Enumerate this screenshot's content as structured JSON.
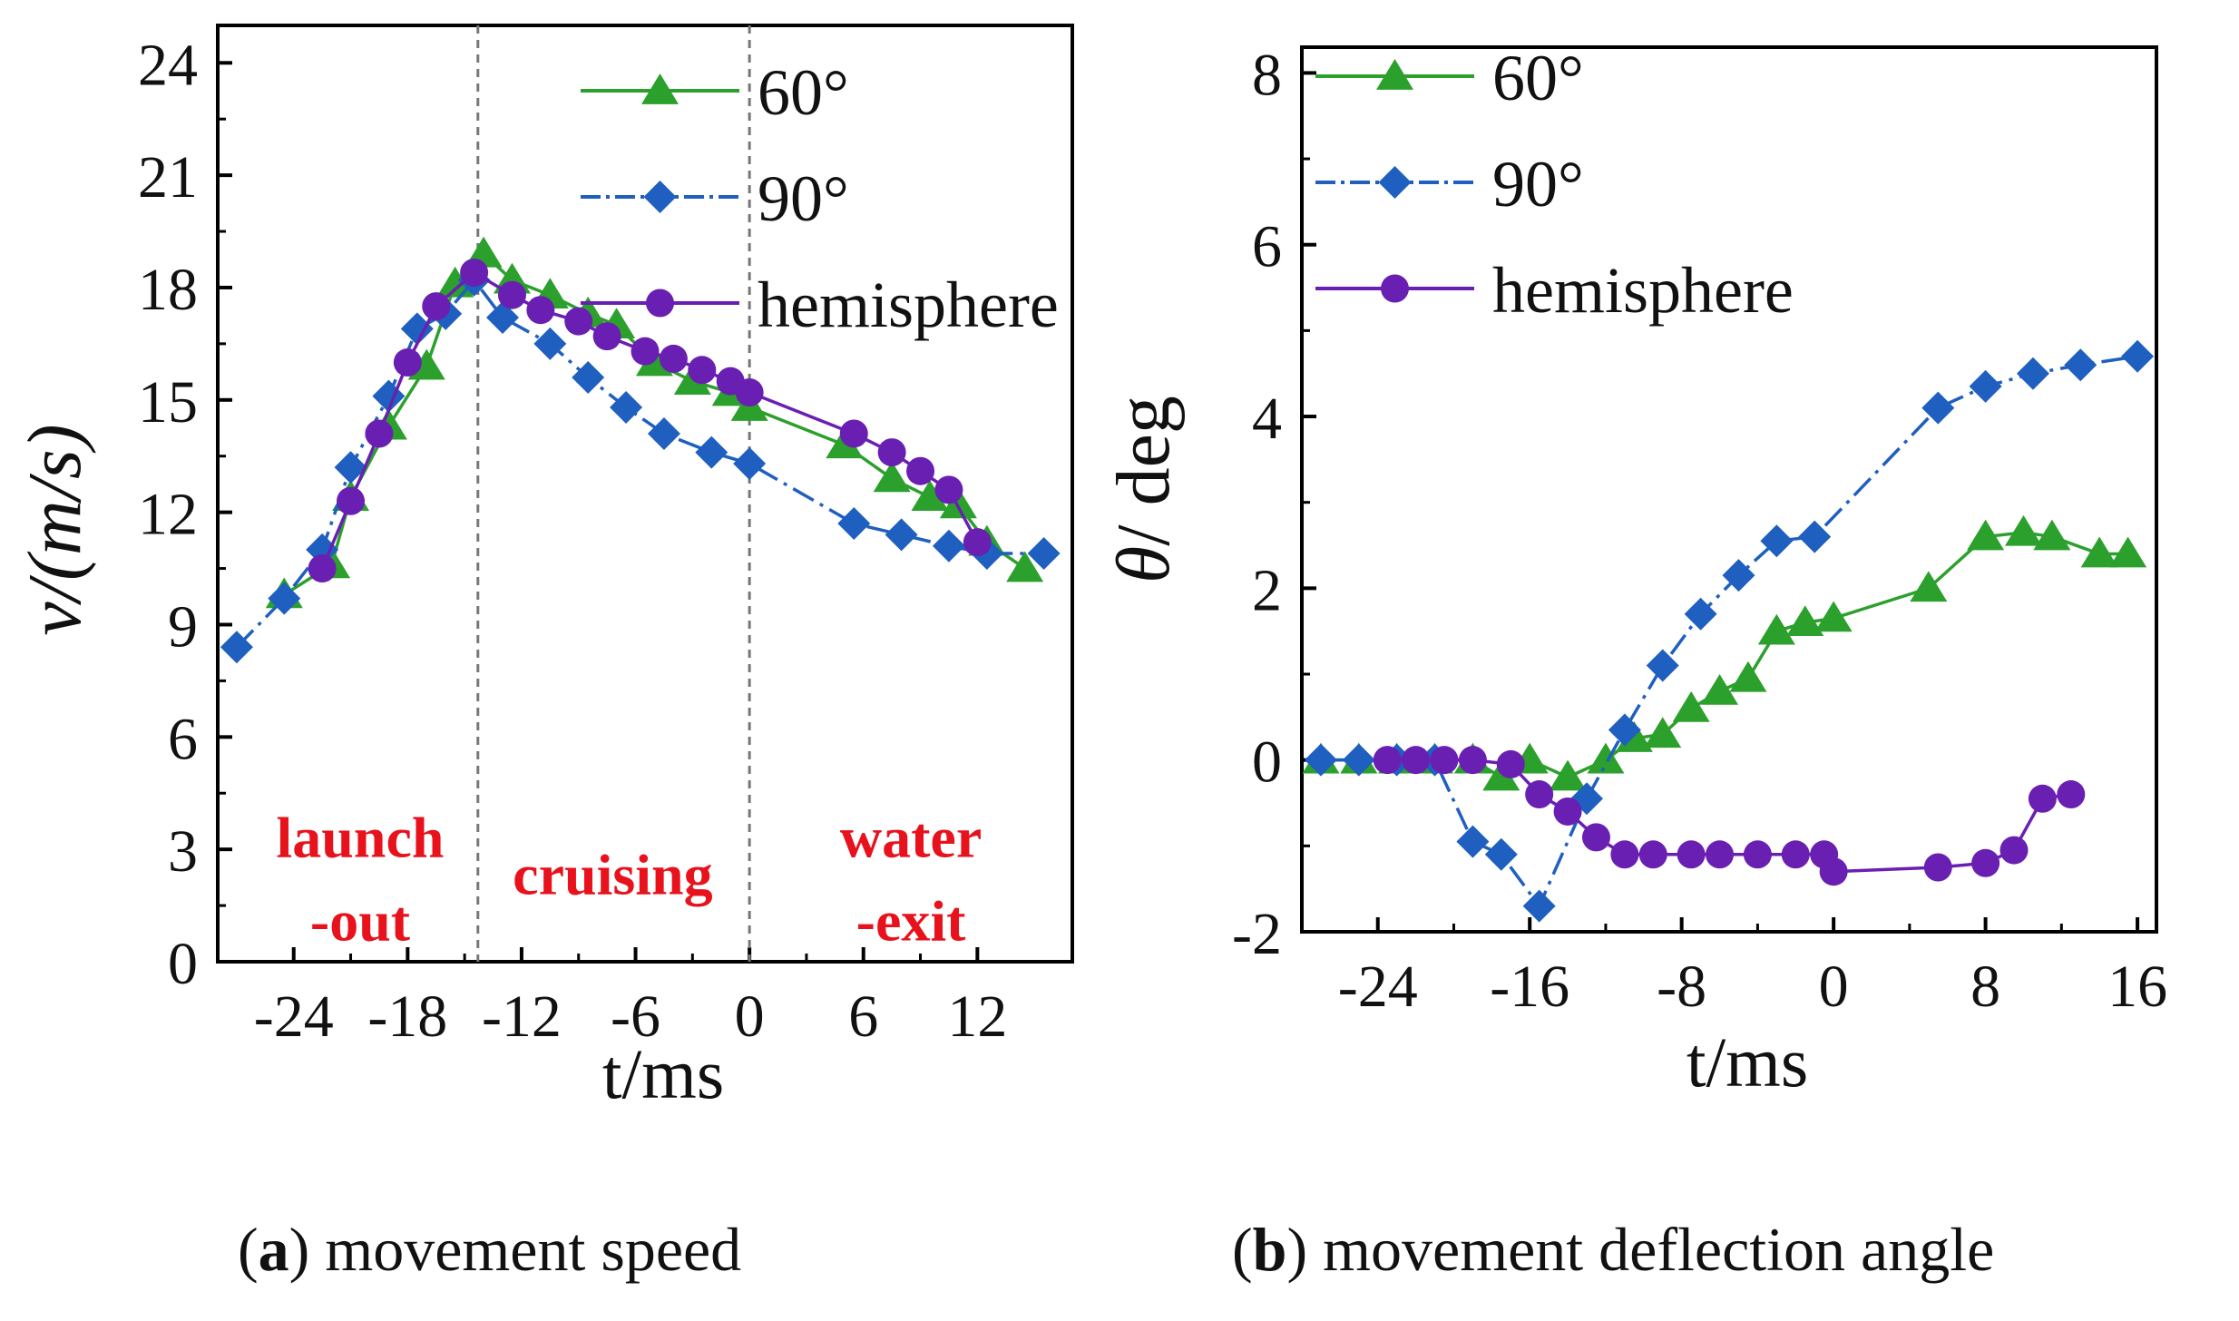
{
  "chart_data": [
    {
      "type": "line",
      "panel": "a",
      "caption_letter": "a",
      "caption_text": "movement speed",
      "xlabel": "t/ms",
      "ylabel": "v/(m/s)",
      "xlim": [
        -28,
        17
      ],
      "ylim": [
        0,
        25
      ],
      "xticks": [
        -24,
        -18,
        -12,
        -6,
        0,
        6,
        12
      ],
      "xtick_labels": [
        "-24",
        "-18",
        "-12",
        "-6",
        "0",
        "6",
        "12"
      ],
      "yticks": [
        0,
        3,
        6,
        9,
        12,
        15,
        18,
        21,
        24
      ],
      "ytick_labels": [
        "0",
        "3",
        "6",
        "9",
        "12",
        "15",
        "18",
        "21",
        "24"
      ],
      "vlines": [
        -14.3,
        0
      ],
      "legend": {
        "position": "top-right"
      },
      "annotations": [
        {
          "lines": [
            "launch",
            "-out"
          ],
          "x": -20.5,
          "y": 2.8,
          "color": "#e8121d"
        },
        {
          "lines": [
            "cruising"
          ],
          "x": -7.2,
          "y": 1.8,
          "color": "#e8121d"
        },
        {
          "lines": [
            "water",
            "-exit"
          ],
          "x": 8.5,
          "y": 2.8,
          "color": "#e8121d"
        }
      ],
      "series": [
        {
          "name": "60°",
          "marker": "triangle",
          "color": "#2ca02c",
          "line": "solid",
          "x": [
            -24.5,
            -22,
            -21,
            -19,
            -17,
            -15.5,
            -14,
            -12.5,
            -10.5,
            -8.5,
            -7,
            -5,
            -3,
            -1,
            0,
            5,
            7.5,
            9.5,
            11,
            12.5,
            14.5
          ],
          "y": [
            9.8,
            10.6,
            12.4,
            14.3,
            15.9,
            18.1,
            18.9,
            18.2,
            17.8,
            17.3,
            17,
            16,
            15.5,
            15.2,
            14.8,
            13.8,
            12.9,
            12.4,
            12.2,
            11.2,
            10.5
          ]
        },
        {
          "name": "90°",
          "marker": "diamond",
          "color": "#1f5fbf",
          "line": "dashdot",
          "x": [
            -27,
            -24.5,
            -22.5,
            -21,
            -19,
            -17.5,
            -16,
            -14.5,
            -13,
            -10.5,
            -8.5,
            -6.5,
            -4.5,
            -2,
            0,
            5.5,
            8,
            10.5,
            12.5,
            15.5
          ],
          "y": [
            8.4,
            9.7,
            11,
            13.2,
            15.1,
            16.9,
            17.3,
            18.2,
            17.2,
            16.5,
            15.6,
            14.8,
            14.1,
            13.6,
            13.3,
            11.7,
            11.4,
            11.1,
            10.9,
            10.9
          ]
        },
        {
          "name": "hemisphere",
          "marker": "circle",
          "color": "#6a1fb3",
          "line": "solid",
          "x": [
            -22.5,
            -21,
            -19.5,
            -18,
            -16.5,
            -14.5,
            -12.5,
            -11,
            -9,
            -7.5,
            -5.5,
            -4,
            -2.5,
            -1,
            0,
            5.5,
            7.5,
            9,
            10.5,
            12
          ],
          "y": [
            10.5,
            12.3,
            14.1,
            16,
            17.5,
            18.4,
            17.8,
            17.4,
            17.1,
            16.7,
            16.3,
            16.1,
            15.8,
            15.5,
            15.2,
            14.1,
            13.6,
            13.1,
            12.6,
            11.2
          ]
        }
      ]
    },
    {
      "type": "line",
      "panel": "b",
      "caption_letter": "b",
      "caption_text": "movement deflection angle",
      "xlabel": "t/ms",
      "ylabel_symbol": "θ",
      "ylabel_unit": "/ deg",
      "xlim": [
        -28,
        17
      ],
      "ylim": [
        -2,
        8.3
      ],
      "xticks": [
        -24,
        -16,
        -8,
        0,
        8,
        16
      ],
      "xtick_labels": [
        "-24",
        "-16",
        "-8",
        "0",
        "8",
        "16"
      ],
      "yticks": [
        -2,
        0,
        2,
        4,
        6,
        8
      ],
      "ytick_labels": [
        "-2",
        "0",
        "2",
        "4",
        "6",
        "8"
      ],
      "legend": {
        "position": "top-left"
      },
      "series": [
        {
          "name": "60°",
          "marker": "triangle",
          "color": "#2ca02c",
          "line": "solid",
          "x": [
            -27,
            -25,
            -23,
            -21,
            -19,
            -17.5,
            -16,
            -14,
            -12,
            -10.5,
            -9,
            -7.5,
            -6,
            -4.5,
            -3,
            -1.5,
            0,
            5,
            8,
            10,
            11.5,
            14,
            15.5
          ],
          "y": [
            0,
            0,
            0,
            0,
            0,
            -0.2,
            0,
            -0.2,
            0,
            0.25,
            0.3,
            0.6,
            0.8,
            0.95,
            1.5,
            1.6,
            1.65,
            2,
            2.6,
            2.65,
            2.6,
            2.4,
            2.4
          ]
        },
        {
          "name": "90°",
          "marker": "diamond",
          "color": "#1f5fbf",
          "line": "dashdot",
          "x": [
            -27,
            -25,
            -23,
            -21,
            -19,
            -17.5,
            -15.5,
            -13,
            -11,
            -9,
            -7,
            -5,
            -3,
            -1,
            5.5,
            8,
            10.5,
            13,
            16
          ],
          "y": [
            0,
            0,
            0,
            0,
            -0.95,
            -1.1,
            -1.7,
            -0.45,
            0.35,
            1.1,
            1.7,
            2.15,
            2.55,
            2.6,
            4.1,
            4.35,
            4.5,
            4.6,
            4.7
          ]
        },
        {
          "name": "hemisphere",
          "marker": "circle",
          "color": "#6a1fb3",
          "line": "solid",
          "x": [
            -23.5,
            -22,
            -20.5,
            -19,
            -17,
            -15.5,
            -14,
            -12.5,
            -11,
            -9.5,
            -7.5,
            -6,
            -4,
            -2,
            -0.5,
            0,
            5.5,
            8,
            9.5,
            11,
            12.5
          ],
          "y": [
            0,
            0,
            0,
            0,
            -0.05,
            -0.4,
            -0.6,
            -0.9,
            -1.1,
            -1.1,
            -1.1,
            -1.1,
            -1.1,
            -1.1,
            -1.1,
            -1.3,
            -1.25,
            -1.2,
            -1.05,
            -0.45,
            -0.4
          ]
        }
      ]
    }
  ]
}
